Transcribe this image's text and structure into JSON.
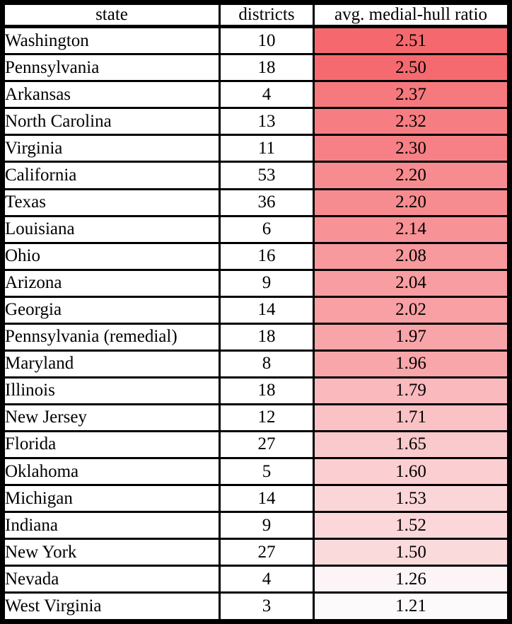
{
  "chart_data": {
    "type": "table",
    "columns": [
      "state",
      "districts",
      "avg. medial-hull ratio"
    ],
    "rows": [
      {
        "state": "Washington",
        "districts": "10",
        "ratio": "2.51",
        "color": "#f5696e"
      },
      {
        "state": "Pennsylvania",
        "districts": "18",
        "ratio": "2.50",
        "color": "#f56a6f"
      },
      {
        "state": "Arkansas",
        "districts": "4",
        "ratio": "2.37",
        "color": "#f6797d"
      },
      {
        "state": "North Carolina",
        "districts": "13",
        "ratio": "2.32",
        "color": "#f67e83"
      },
      {
        "state": "Virginia",
        "districts": "11",
        "ratio": "2.30",
        "color": "#f68085"
      },
      {
        "state": "California",
        "districts": "53",
        "ratio": "2.20",
        "color": "#f78c90"
      },
      {
        "state": "Texas",
        "districts": "36",
        "ratio": "2.20",
        "color": "#f78c90"
      },
      {
        "state": "Louisiana",
        "districts": "6",
        "ratio": "2.14",
        "color": "#f79296"
      },
      {
        "state": "Ohio",
        "districts": "16",
        "ratio": "2.08",
        "color": "#f8999d"
      },
      {
        "state": "Arizona",
        "districts": "9",
        "ratio": "2.04",
        "color": "#f89da1"
      },
      {
        "state": "Georgia",
        "districts": "14",
        "ratio": "2.02",
        "color": "#f8a0a4"
      },
      {
        "state": "Pennsylvania (remedial)",
        "districts": "18",
        "ratio": "1.97",
        "color": "#f8a5a9"
      },
      {
        "state": "Maryland",
        "districts": "8",
        "ratio": "1.96",
        "color": "#f8a6aa"
      },
      {
        "state": "Illinois",
        "districts": "18",
        "ratio": "1.79",
        "color": "#f9b9bd"
      },
      {
        "state": "New Jersey",
        "districts": "12",
        "ratio": "1.71",
        "color": "#fac2c5"
      },
      {
        "state": "Florida",
        "districts": "27",
        "ratio": "1.65",
        "color": "#fac9cc"
      },
      {
        "state": "Oklahoma",
        "districts": "5",
        "ratio": "1.60",
        "color": "#fbced1"
      },
      {
        "state": "Michigan",
        "districts": "14",
        "ratio": "1.53",
        "color": "#fbd6d9"
      },
      {
        "state": "Indiana",
        "districts": "9",
        "ratio": "1.52",
        "color": "#fbd7da"
      },
      {
        "state": "New York",
        "districts": "27",
        "ratio": "1.50",
        "color": "#fbdadc"
      },
      {
        "state": "Nevada",
        "districts": "4",
        "ratio": "1.26",
        "color": "#fdf4f7"
      },
      {
        "state": "West Virginia",
        "districts": "3",
        "ratio": "1.21",
        "color": "#fdfafc"
      }
    ],
    "heatmap": {
      "applies_to_column": "avg. medial-hull ratio",
      "min_value": 1.21,
      "max_value": 2.51,
      "min_color": "#fdfafc",
      "max_color": "#f5696e"
    },
    "layout": {
      "border_color": "#000000",
      "text_color": "#000000",
      "background_color": "#ffffff",
      "legend": "none",
      "grid": "on"
    }
  }
}
